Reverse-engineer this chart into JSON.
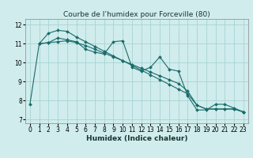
{
  "title": "Courbe de l’humidex pour Forceville (80)",
  "xlabel": "Humidex (Indice chaleur)",
  "bg_color": "#d0ecec",
  "grid_color": "#a8d4d4",
  "line_color": "#1a6b6b",
  "xlim": [
    -0.5,
    23.5
  ],
  "ylim": [
    6.8,
    12.3
  ],
  "xticks": [
    0,
    1,
    2,
    3,
    4,
    5,
    6,
    7,
    8,
    9,
    10,
    11,
    12,
    13,
    14,
    15,
    16,
    17,
    18,
    19,
    20,
    21,
    22,
    23
  ],
  "yticks": [
    7,
    8,
    9,
    10,
    11,
    12
  ],
  "series": [
    {
      "x": [
        0,
        1,
        2,
        3,
        4,
        5,
        6,
        7,
        8,
        9,
        10,
        11,
        12,
        13,
        14,
        15,
        16,
        17,
        18,
        19,
        20,
        21,
        22,
        23
      ],
      "y": [
        7.8,
        11.0,
        11.05,
        11.3,
        11.2,
        11.1,
        10.7,
        10.55,
        10.45,
        11.1,
        11.15,
        9.75,
        9.55,
        9.75,
        10.3,
        9.65,
        9.55,
        8.25,
        7.5,
        7.5,
        7.8,
        7.8,
        7.6,
        7.4
      ]
    },
    {
      "x": [
        1,
        2,
        3,
        4,
        5,
        6,
        7,
        8,
        9,
        10,
        11,
        12,
        13,
        14,
        15,
        16,
        17,
        18,
        19,
        20,
        21,
        22,
        23
      ],
      "y": [
        11.0,
        11.55,
        11.7,
        11.65,
        11.35,
        11.1,
        10.85,
        10.6,
        10.35,
        10.1,
        9.85,
        9.6,
        9.35,
        9.1,
        8.85,
        8.6,
        8.35,
        7.75,
        7.55,
        7.55,
        7.55,
        7.55,
        7.4
      ]
    },
    {
      "x": [
        1,
        2,
        3,
        4,
        5,
        6,
        7,
        8,
        9,
        10,
        11,
        12,
        13,
        14,
        15,
        16,
        17,
        18,
        19,
        20,
        21,
        22,
        23
      ],
      "y": [
        11.0,
        11.05,
        11.1,
        11.15,
        11.05,
        10.9,
        10.7,
        10.5,
        10.3,
        10.1,
        9.9,
        9.7,
        9.5,
        9.3,
        9.1,
        8.9,
        8.5,
        7.75,
        7.55,
        7.55,
        7.55,
        7.55,
        7.4
      ]
    }
  ],
  "title_fontsize": 6.5,
  "axis_fontsize": 6.5,
  "tick_fontsize": 5.5
}
